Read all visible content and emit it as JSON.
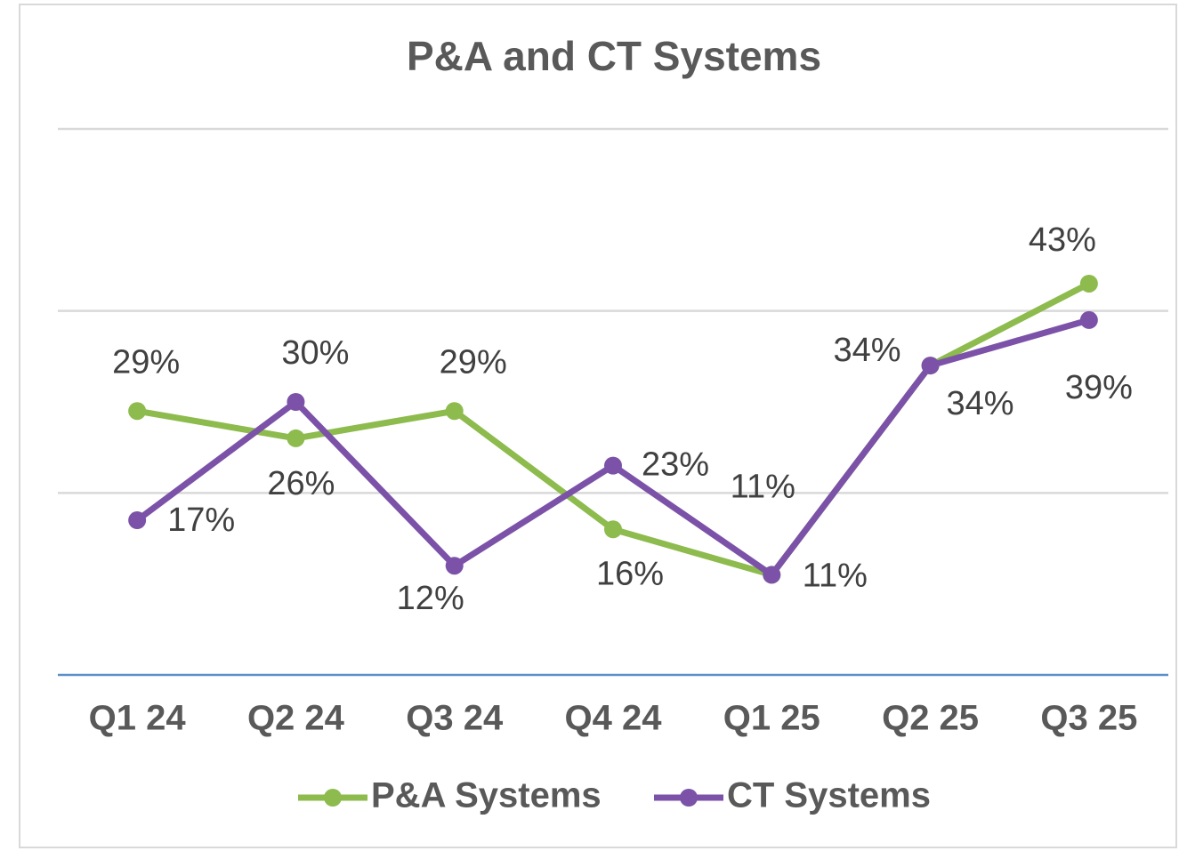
{
  "chart_data": {
    "type": "line",
    "title": "P&A and CT Systems",
    "categories": [
      "Q1 24",
      "Q2 24",
      "Q3 24",
      "Q4 24",
      "Q1 25",
      "Q2 25",
      "Q3 25"
    ],
    "series": [
      {
        "name": "P&A Systems",
        "color": "#8dbb4d",
        "values": [
          29,
          26,
          29,
          16,
          11,
          34,
          43
        ],
        "value_labels": [
          "29%",
          "26%",
          "29%",
          "16%",
          "11%",
          "34%",
          "43%"
        ]
      },
      {
        "name": "CT Systems",
        "color": "#7b52a8",
        "values": [
          17,
          30,
          12,
          23,
          11,
          34,
          39
        ],
        "value_labels": [
          "17%",
          "30%",
          "12%",
          "23%",
          "11%",
          "34%",
          "39%"
        ]
      }
    ],
    "ylim": [
      0,
      60
    ],
    "yticks": [
      0,
      20,
      40,
      60
    ],
    "grid": true,
    "legend": "bottom"
  }
}
